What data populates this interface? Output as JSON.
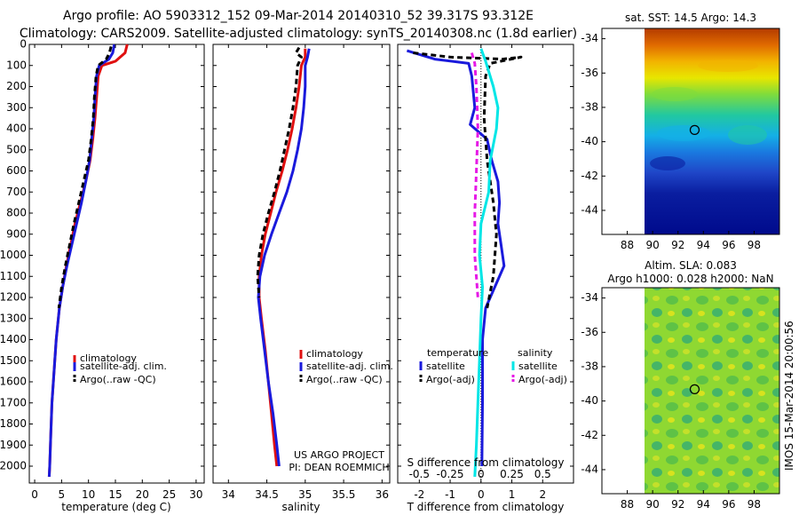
{
  "header": {
    "title_line1": "Argo profile: AO 5903312_152 09-Mar-2014 20140310_52 39.317S 93.312E",
    "title_line2": "Climatology: CARS2009. Satellite-adjusted climatology: synTS_20140308.nc (1.8d earlier)"
  },
  "side_stamp": "IMOS 15-Mar-2014 20:00:56",
  "colors": {
    "red": "#e01010",
    "blue": "#1a1adc",
    "black": "#000000",
    "cyan": "#00e6e6",
    "magenta": "#e619e6"
  },
  "chart_data": [
    {
      "id": "temperature",
      "type": "line",
      "xlabel": "temperature (deg C)",
      "xlim": [
        -1,
        31.5
      ],
      "ylim": [
        2080,
        0
      ],
      "xticks": [
        0,
        5,
        10,
        15,
        20,
        25,
        30
      ],
      "yticks": [
        0,
        100,
        200,
        300,
        400,
        500,
        600,
        700,
        800,
        900,
        1000,
        1100,
        1200,
        1300,
        1400,
        1500,
        1600,
        1700,
        1800,
        1900,
        2000
      ],
      "legend": [
        "climatology",
        "satellite-adj. clim.",
        "Argo(..raw -QC)"
      ],
      "series": [
        {
          "name": "climatology",
          "color": "red",
          "dash": "",
          "points": [
            [
              17.2,
              0
            ],
            [
              16.8,
              40
            ],
            [
              15,
              80
            ],
            [
              12.5,
              100
            ],
            [
              11.8,
              150
            ],
            [
              11.5,
              250
            ],
            [
              11.2,
              350
            ],
            [
              10.8,
              450
            ],
            [
              10.3,
              550
            ],
            [
              9.5,
              650
            ],
            [
              8.5,
              750
            ],
            [
              7.5,
              850
            ],
            [
              6.7,
              950
            ],
            [
              5.9,
              1050
            ],
            [
              5.2,
              1150
            ],
            [
              4.6,
              1250
            ],
            [
              4.0,
              1400
            ],
            [
              3.6,
              1550
            ],
            [
              3.2,
              1700
            ],
            [
              3.0,
              1850
            ],
            [
              2.8,
              2000
            ],
            [
              2.7,
              2050
            ]
          ]
        },
        {
          "name": "satellite-adj. clim.",
          "color": "blue",
          "dash": "",
          "points": [
            [
              14.8,
              0
            ],
            [
              14.5,
              40
            ],
            [
              13.8,
              70
            ],
            [
              12.0,
              100
            ],
            [
              11.5,
              150
            ],
            [
              11.2,
              250
            ],
            [
              11.0,
              350
            ],
            [
              10.6,
              450
            ],
            [
              10.2,
              550
            ],
            [
              9.5,
              650
            ],
            [
              8.7,
              750
            ],
            [
              7.8,
              850
            ],
            [
              6.9,
              950
            ],
            [
              6.0,
              1050
            ],
            [
              5.2,
              1150
            ],
            [
              4.6,
              1250
            ],
            [
              4.0,
              1400
            ],
            [
              3.6,
              1550
            ],
            [
              3.2,
              1700
            ],
            [
              3.0,
              1850
            ],
            [
              2.8,
              2000
            ],
            [
              2.7,
              2050
            ]
          ]
        },
        {
          "name": "Argo(..raw -QC)",
          "color": "black",
          "dash": "6,4",
          "points": [
            [
              14.2,
              10
            ],
            [
              13.9,
              40
            ],
            [
              13.3,
              70
            ],
            [
              11.8,
              100
            ],
            [
              11.4,
              150
            ],
            [
              11.1,
              250
            ],
            [
              10.9,
              350
            ],
            [
              10.5,
              450
            ],
            [
              10.0,
              550
            ],
            [
              9.1,
              650
            ],
            [
              8.2,
              750
            ],
            [
              7.3,
              850
            ],
            [
              6.5,
              950
            ],
            [
              5.7,
              1050
            ],
            [
              5.0,
              1150
            ],
            [
              4.5,
              1250
            ]
          ]
        }
      ]
    },
    {
      "id": "salinity",
      "type": "line",
      "xlabel": "salinity",
      "xlim": [
        33.8,
        36.1
      ],
      "ylim": [
        2080,
        0
      ],
      "xticks": [
        34,
        34.5,
        35,
        35.5,
        36
      ],
      "legend": [
        "climatology",
        "satellite-adj. clim.",
        "Argo(..raw -QC)"
      ],
      "annotation_line1": "US ARGO PROJECT",
      "annotation_line2": "PI: DEAN ROEMMICH",
      "series": [
        {
          "name": "climatology",
          "color": "red",
          "dash": "",
          "points": [
            [
              35.0,
              20
            ],
            [
              35.0,
              60
            ],
            [
              34.95,
              100
            ],
            [
              34.92,
              200
            ],
            [
              34.88,
              300
            ],
            [
              34.83,
              400
            ],
            [
              34.77,
              500
            ],
            [
              34.7,
              600
            ],
            [
              34.62,
              700
            ],
            [
              34.55,
              800
            ],
            [
              34.48,
              900
            ],
            [
              34.43,
              1000
            ],
            [
              34.4,
              1100
            ],
            [
              34.4,
              1200
            ],
            [
              34.43,
              1300
            ],
            [
              34.48,
              1450
            ],
            [
              34.52,
              1600
            ],
            [
              34.56,
              1750
            ],
            [
              34.6,
              1900
            ],
            [
              34.63,
              2000
            ]
          ]
        },
        {
          "name": "satellite-adj. clim.",
          "color": "blue",
          "dash": "",
          "points": [
            [
              35.05,
              20
            ],
            [
              35.03,
              60
            ],
            [
              35.0,
              100
            ],
            [
              35.0,
              200
            ],
            [
              34.98,
              300
            ],
            [
              34.95,
              400
            ],
            [
              34.9,
              500
            ],
            [
              34.84,
              600
            ],
            [
              34.76,
              700
            ],
            [
              34.66,
              800
            ],
            [
              34.56,
              900
            ],
            [
              34.47,
              1000
            ],
            [
              34.41,
              1100
            ],
            [
              34.39,
              1200
            ],
            [
              34.42,
              1300
            ],
            [
              34.47,
              1450
            ],
            [
              34.52,
              1600
            ],
            [
              34.58,
              1750
            ],
            [
              34.63,
              1900
            ],
            [
              34.66,
              2000
            ]
          ]
        },
        {
          "name": "Argo(..raw -QC)",
          "color": "black",
          "dash": "6,4",
          "points": [
            [
              34.92,
              15
            ],
            [
              34.88,
              40
            ],
            [
              34.95,
              60
            ],
            [
              34.9,
              100
            ],
            [
              34.88,
              200
            ],
            [
              34.84,
              300
            ],
            [
              34.79,
              400
            ],
            [
              34.73,
              500
            ],
            [
              34.67,
              600
            ],
            [
              34.6,
              700
            ],
            [
              34.52,
              800
            ],
            [
              34.45,
              900
            ],
            [
              34.4,
              1000
            ],
            [
              34.38,
              1100
            ],
            [
              34.4,
              1200
            ]
          ]
        }
      ]
    },
    {
      "id": "difference",
      "type": "line",
      "xlabel": "T difference from climatology",
      "xlabel_top": "S difference from climatology",
      "xlim": [
        -2.7,
        3.0
      ],
      "ylim": [
        2080,
        0
      ],
      "xticks": [
        -2,
        -1,
        0,
        1,
        2
      ],
      "xticks_s": [
        "-0.5",
        "-0.25",
        "0",
        "0.25",
        "0.5"
      ],
      "xticks_s_pos": [
        -2,
        -1,
        0,
        1,
        2
      ],
      "legend_titles": [
        "temperature",
        "salinity"
      ],
      "legend": [
        "satellite",
        "Argo(-adj)",
        "satellite",
        "Argo(-adj)"
      ],
      "series": [
        {
          "name": "T satellite",
          "color": "blue",
          "dash": "",
          "points": [
            [
              -2.4,
              30
            ],
            [
              -1.5,
              70
            ],
            [
              -0.4,
              90
            ],
            [
              -0.3,
              150
            ],
            [
              -0.2,
              300
            ],
            [
              -0.35,
              380
            ],
            [
              0.2,
              450
            ],
            [
              0.35,
              550
            ],
            [
              0.55,
              650
            ],
            [
              0.6,
              750
            ],
            [
              0.55,
              850
            ],
            [
              0.65,
              950
            ],
            [
              0.75,
              1050
            ],
            [
              0.45,
              1150
            ],
            [
              0.15,
              1250
            ],
            [
              0.05,
              1400
            ],
            [
              0.05,
              1700
            ],
            [
              0.03,
              2000
            ]
          ]
        },
        {
          "name": "T Argo(-adj)",
          "color": "black",
          "dash": "6,4",
          "points": [
            [
              -2.2,
              40
            ],
            [
              -1.0,
              60
            ],
            [
              0.7,
              70
            ],
            [
              1.3,
              60
            ],
            [
              0.3,
              90
            ],
            [
              0.15,
              150
            ],
            [
              0.1,
              350
            ],
            [
              0.2,
              550
            ],
            [
              0.4,
              750
            ],
            [
              0.5,
              900
            ],
            [
              0.4,
              1100
            ],
            [
              0.2,
              1250
            ]
          ]
        },
        {
          "name": "S satellite",
          "color": "cyan",
          "dash": "",
          "points": [
            [
              0.0,
              20
            ],
            [
              0.15,
              80
            ],
            [
              0.4,
              200
            ],
            [
              0.55,
              300
            ],
            [
              0.5,
              400
            ],
            [
              0.3,
              550
            ],
            [
              0.25,
              700
            ],
            [
              0.0,
              850
            ],
            [
              -0.05,
              1000
            ],
            [
              0.05,
              1150
            ],
            [
              0.0,
              1300
            ],
            [
              -0.05,
              1500
            ],
            [
              -0.1,
              1700
            ],
            [
              -0.15,
              1900
            ],
            [
              -0.2,
              2050
            ]
          ]
        },
        {
          "name": "S Argo(-adj)",
          "color": "magenta",
          "dash": "6,4",
          "points": [
            [
              -0.3,
              40
            ],
            [
              -0.2,
              90
            ],
            [
              -0.15,
              200
            ],
            [
              -0.1,
              400
            ],
            [
              -0.15,
              600
            ],
            [
              -0.2,
              800
            ],
            [
              -0.2,
              1000
            ],
            [
              -0.1,
              1200
            ]
          ]
        }
      ]
    },
    {
      "id": "sst_map",
      "type": "heatmap",
      "title": "sat. SST: 14.5 Argo: 14.3",
      "xlim": [
        86,
        100
      ],
      "ylim": [
        -45.4,
        -33.4
      ],
      "xticks": [
        88,
        90,
        92,
        94,
        96,
        98
      ],
      "yticks": [
        -34,
        -36,
        -38,
        -40,
        -42,
        -44
      ],
      "data_x_start": 90,
      "marker": [
        93.312,
        -39.317
      ]
    },
    {
      "id": "sla_map",
      "type": "heatmap",
      "title_line1": "Altim. SLA: 0.083",
      "title_line2": "Argo h1000: 0.028 h2000: NaN",
      "xlim": [
        86,
        100
      ],
      "ylim": [
        -45.4,
        -33.4
      ],
      "xticks": [
        88,
        90,
        92,
        94,
        96,
        98
      ],
      "yticks": [
        -34,
        -36,
        -38,
        -40,
        -42,
        -44
      ],
      "data_x_start": 90,
      "marker": [
        93.312,
        -39.317
      ]
    }
  ]
}
